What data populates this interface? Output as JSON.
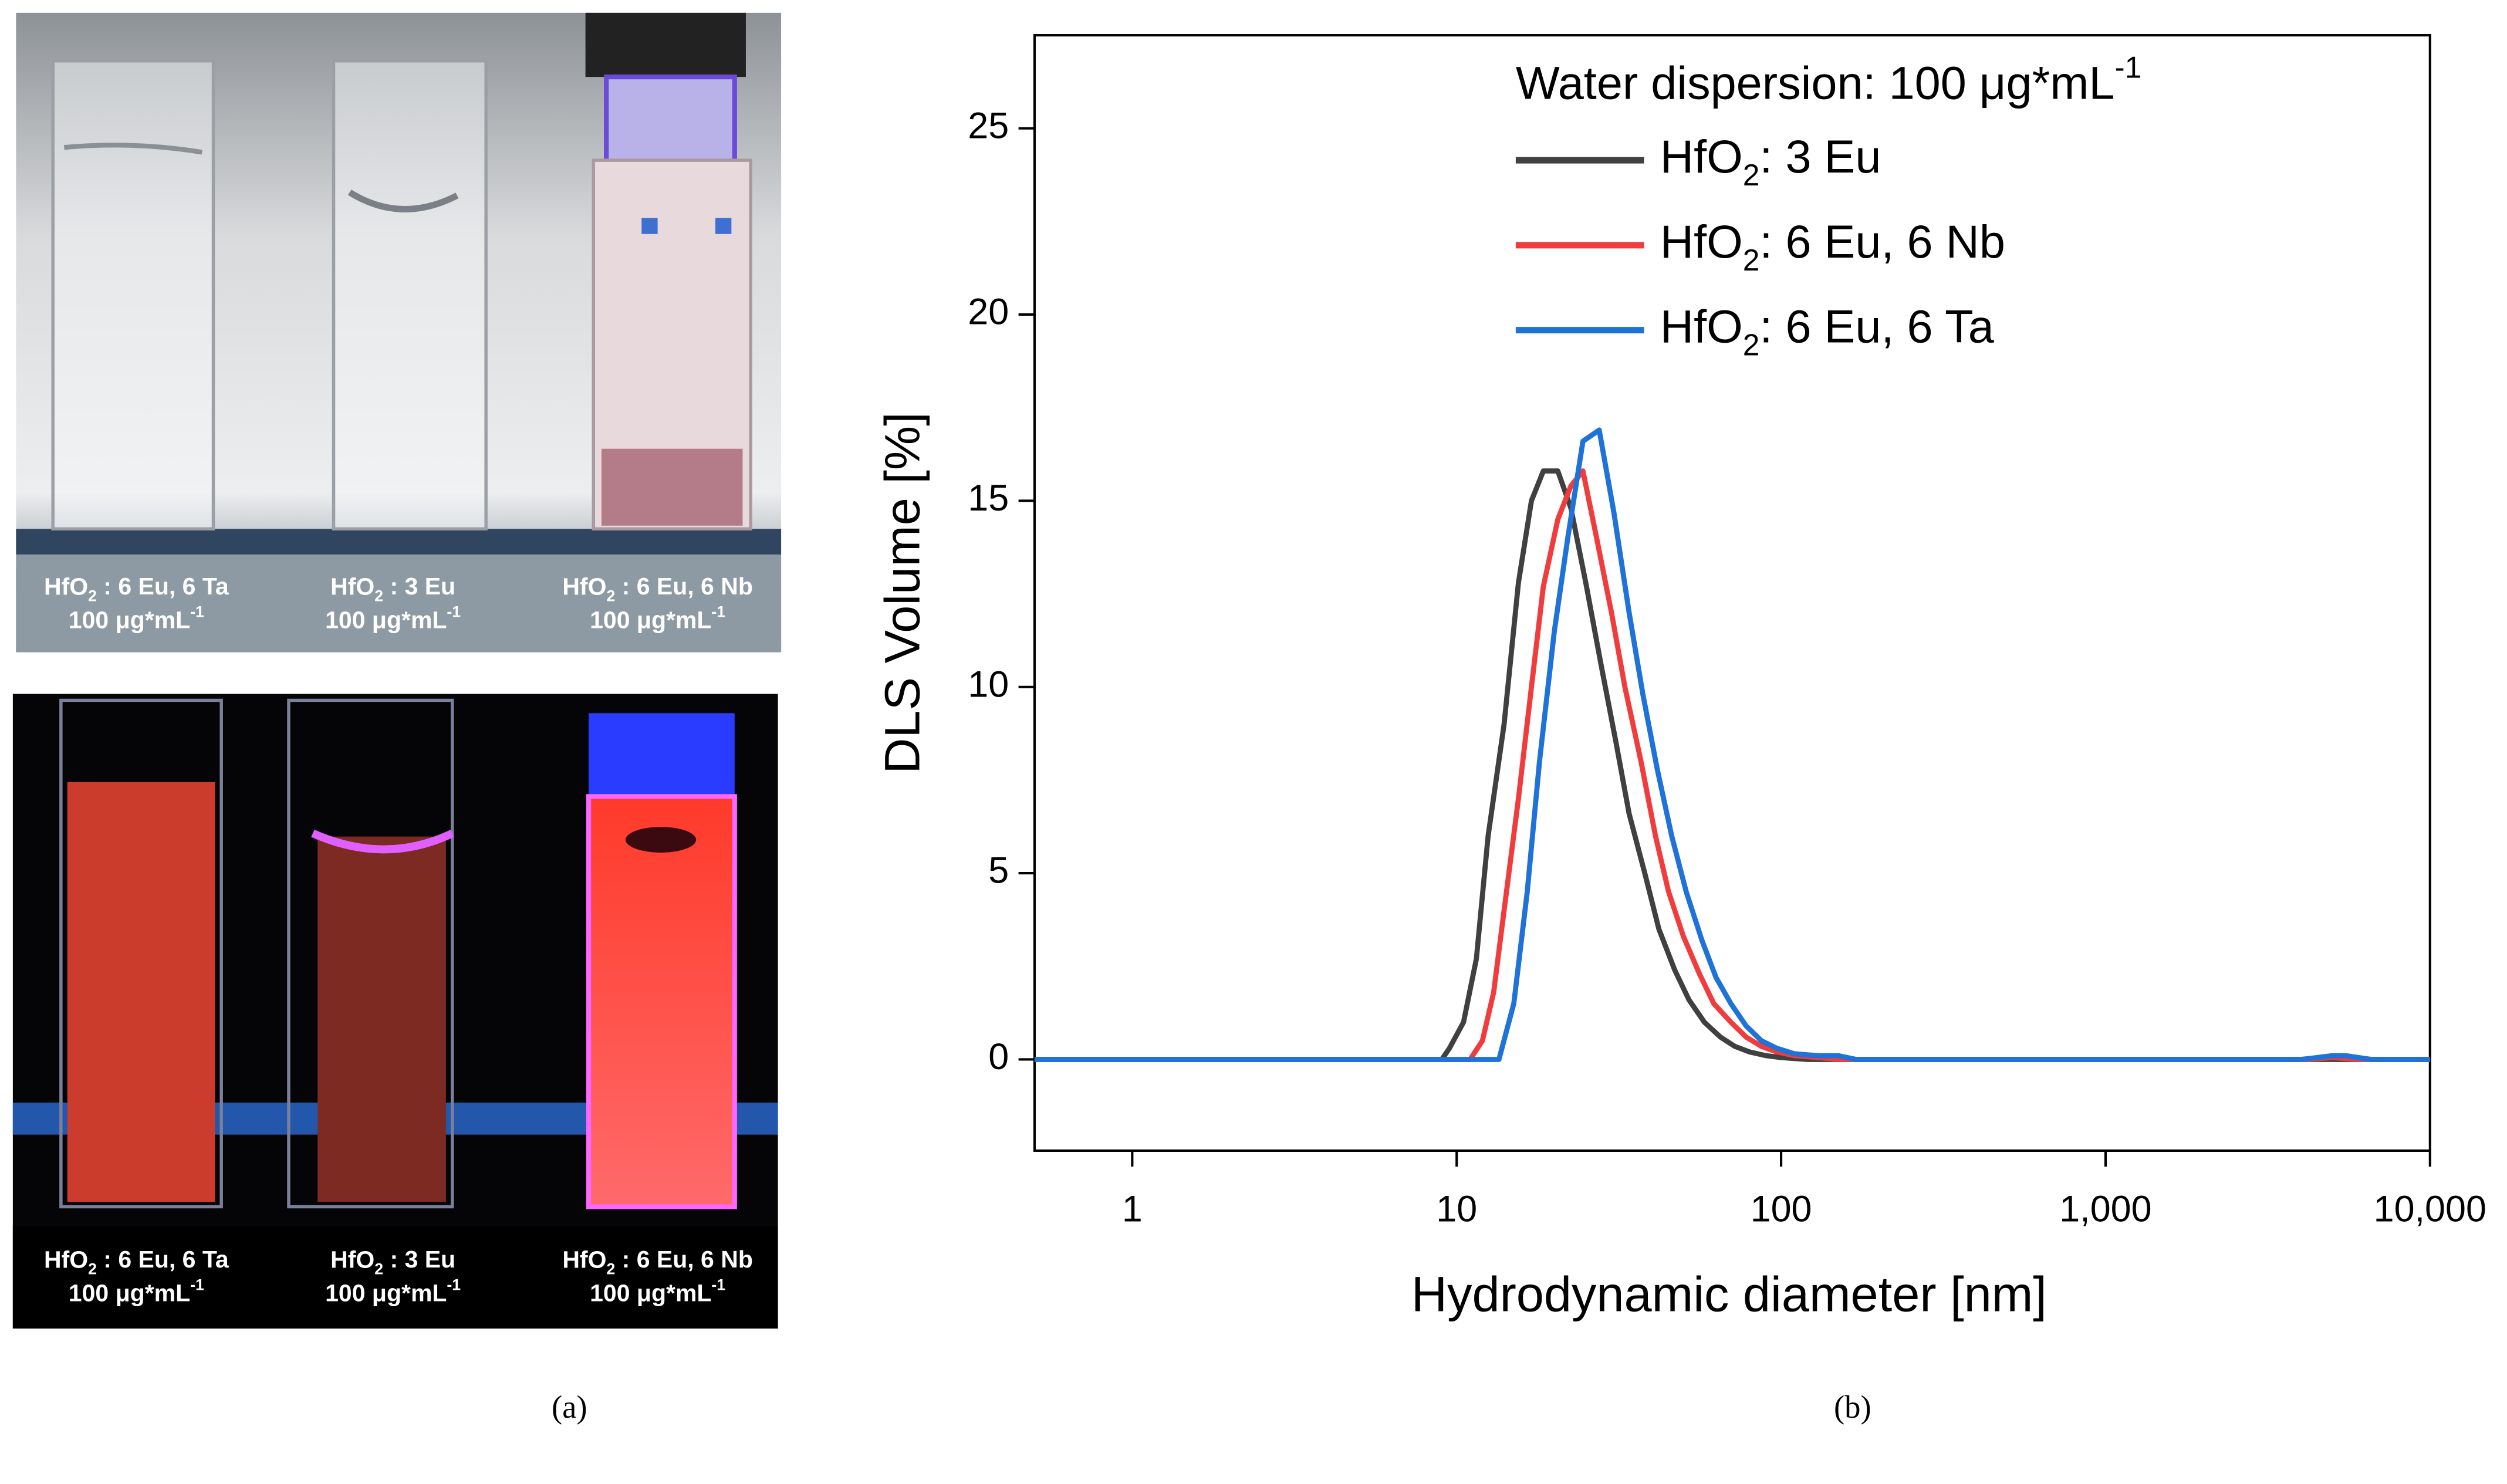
{
  "panel_a": {
    "top": [
      [
        "HfO2 : 6 Eu, 6 Ta",
        "100 μg*mL-1"
      ],
      [
        "HfO2 : 3 Eu",
        "100 μg*mL-1"
      ],
      [
        "HfO2 : 6 Eu, 6 Nb",
        "100 μg*mL-1"
      ]
    ],
    "bottom": [
      [
        "HfO2 : 6 Eu, 6 Ta",
        "100 μg*mL-1"
      ],
      [
        "HfO2 : 3 Eu",
        "100 μg*mL-1"
      ],
      [
        "HfO2 : 6 Eu, 6 Nb",
        "100 μg*mL-1"
      ]
    ],
    "caption": "(a)"
  },
  "chart_data": {
    "type": "line",
    "caption": "(b)",
    "legend_title": "Water dispersion: 100 μg*mL-1",
    "legend": "upper right",
    "xlabel": "Hydrodynamic diameter [nm]",
    "ylabel": "DLS Volume [%]",
    "xscale": "log",
    "xlim": [
      0.5,
      10000
    ],
    "ylim": [
      -2.45,
      27.5
    ],
    "xticks": [
      1,
      10,
      100,
      {
        "value": 1000,
        "label": "1,000"
      },
      {
        "value": 10000,
        "label": "10,000"
      }
    ],
    "yticks": [
      0,
      5,
      10,
      15,
      20,
      25
    ],
    "series": [
      {
        "name": "HfO2: 3 Eu",
        "color": "#404040",
        "x": [
          0.5,
          9,
          9.5,
          10.5,
          11.5,
          12.5,
          14,
          15.5,
          17,
          18.5,
          20.5,
          22.5,
          25,
          28,
          31,
          34,
          38,
          42,
          47,
          52,
          58,
          65,
          72,
          80,
          90,
          100,
          120,
          10000
        ],
        "values": [
          0,
          0,
          0.3,
          1,
          2.7,
          6,
          9,
          12.8,
          15,
          15.8,
          15.8,
          14.8,
          12.8,
          10.5,
          8.5,
          6.6,
          5,
          3.5,
          2.4,
          1.6,
          1.0,
          0.6,
          0.35,
          0.2,
          0.1,
          0.05,
          0,
          0
        ]
      },
      {
        "name": "HfO2: 6 Eu, 6 Nb",
        "color": "#f03c3c",
        "x": [
          0.5,
          11,
          12,
          13,
          14,
          15.5,
          17,
          18.5,
          20.5,
          22.5,
          24.5,
          27,
          30,
          33,
          37,
          41,
          45,
          50,
          56,
          62,
          70,
          78,
          87,
          97,
          110,
          130,
          150,
          4200,
          5000,
          6000,
          10000
        ],
        "values": [
          0,
          0,
          0.5,
          1.8,
          4,
          7,
          10,
          12.7,
          14.5,
          15.4,
          15.8,
          14,
          12,
          10,
          8,
          6,
          4.5,
          3.3,
          2.3,
          1.5,
          1.0,
          0.6,
          0.35,
          0.2,
          0.1,
          0.05,
          0,
          0,
          0.05,
          0,
          0
        ]
      },
      {
        "name": "HfO2: 6 Eu, 6 Ta",
        "color": "#1f72d8",
        "x": [
          0.5,
          13.5,
          15,
          16.5,
          18,
          20,
          22,
          24.5,
          27.5,
          30.5,
          34,
          37.5,
          41.5,
          46,
          51,
          57,
          63,
          70,
          78,
          87,
          97,
          110,
          130,
          150,
          170,
          4000,
          4500,
          5000,
          5500,
          6000,
          6600,
          10000
        ],
        "values": [
          0,
          0,
          1.5,
          4.5,
          8,
          11.5,
          14,
          16.6,
          16.9,
          14.7,
          12,
          9.8,
          7.8,
          6,
          4.5,
          3.2,
          2.2,
          1.5,
          0.9,
          0.5,
          0.3,
          0.15,
          0.1,
          0.1,
          0,
          0,
          0.05,
          0.1,
          0.1,
          0.05,
          0,
          0
        ]
      }
    ]
  }
}
